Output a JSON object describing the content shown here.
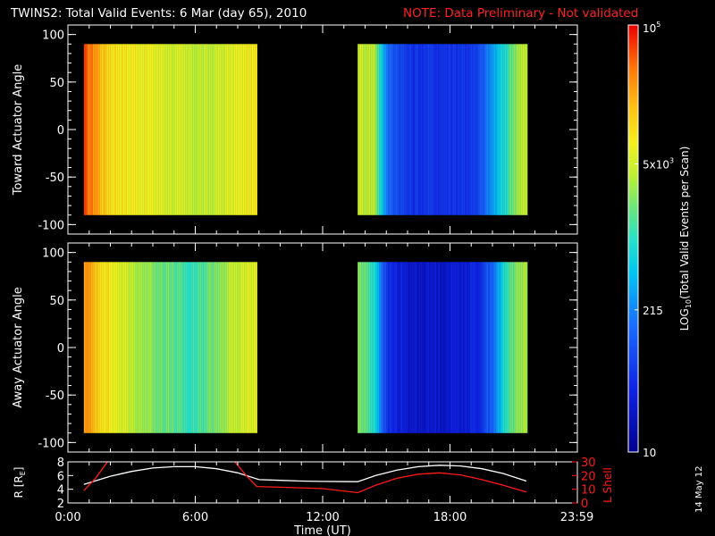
{
  "title": {
    "text": "TWINS2: Total Valid Events:  6 Mar (day  65), 2010",
    "note": "NOTE: Data Preliminary - Not validated",
    "note_color": "#ff2020"
  },
  "footer": {
    "date_stamp": "14 May 12"
  },
  "chart_data": [
    {
      "type": "heatmap",
      "ylabel": "Toward Actuator Angle",
      "ylim": [
        -110,
        110
      ],
      "yticks": [
        -100,
        -50,
        0,
        50,
        100
      ],
      "xlim_hours": [
        0,
        24
      ],
      "data_blocks_hours": [
        [
          0.75,
          8.9
        ],
        [
          13.65,
          21.6
        ]
      ],
      "columns_log10": [
        [
          0.75,
          4.7
        ],
        [
          1.0,
          4.6
        ],
        [
          1.3,
          4.45
        ],
        [
          1.6,
          4.2
        ],
        [
          2.0,
          4.05
        ],
        [
          2.6,
          3.95
        ],
        [
          3.4,
          3.9
        ],
        [
          4.4,
          3.78
        ],
        [
          5.5,
          3.65
        ],
        [
          6.5,
          3.6
        ],
        [
          7.5,
          3.75
        ],
        [
          8.5,
          3.9
        ],
        [
          8.9,
          3.9
        ],
        [
          13.65,
          3.7
        ],
        [
          14.4,
          3.62
        ],
        [
          15.0,
          2.2
        ],
        [
          16.0,
          1.75
        ],
        [
          17.5,
          1.75
        ],
        [
          19.2,
          1.8
        ],
        [
          20.0,
          2.5
        ],
        [
          20.6,
          3.0
        ],
        [
          21.2,
          3.6
        ],
        [
          21.6,
          3.6
        ]
      ]
    },
    {
      "type": "heatmap",
      "ylabel": "Away Actuator Angle",
      "ylim": [
        -110,
        110
      ],
      "yticks": [
        -100,
        -50,
        0,
        50,
        100
      ],
      "xlim_hours": [
        0,
        24
      ],
      "data_blocks_hours": [
        [
          0.75,
          8.9
        ],
        [
          13.65,
          21.6
        ]
      ],
      "columns_log10": [
        [
          0.75,
          4.45
        ],
        [
          1.0,
          4.35
        ],
        [
          1.5,
          4.1
        ],
        [
          2.0,
          3.9
        ],
        [
          3.0,
          3.6
        ],
        [
          4.0,
          3.4
        ],
        [
          5.0,
          3.2
        ],
        [
          5.8,
          3.0
        ],
        [
          6.5,
          3.25
        ],
        [
          7.5,
          3.55
        ],
        [
          8.5,
          3.75
        ],
        [
          8.9,
          3.8
        ],
        [
          13.65,
          3.4
        ],
        [
          14.4,
          3.0
        ],
        [
          15.0,
          1.7
        ],
        [
          16.0,
          1.45
        ],
        [
          17.5,
          1.45
        ],
        [
          19.2,
          1.6
        ],
        [
          20.0,
          2.2
        ],
        [
          20.6,
          3.0
        ],
        [
          21.2,
          3.5
        ],
        [
          21.6,
          3.5
        ]
      ]
    },
    {
      "type": "line",
      "xlabel": "Time (UT)",
      "xticks": [
        "0:00",
        "6:00",
        "12:00",
        "18:00",
        "23:59"
      ],
      "xtick_hours": [
        0,
        6,
        12,
        18,
        23.98
      ],
      "ylabel_left": "R [R",
      "ylabel_left_sub": "E",
      "ylabel_left_end": "]",
      "ylim_left": [
        2,
        8
      ],
      "yticks_left": [
        2,
        4,
        6,
        8
      ],
      "ylabel_right": "L Shell",
      "ylim_right": [
        0,
        30
      ],
      "yticks_right": [
        0,
        10,
        20,
        30
      ],
      "series": [
        {
          "color": "#ffffff",
          "axis": "left",
          "x": [
            0.75,
            2,
            3,
            4,
            5,
            6,
            7,
            8,
            9,
            10,
            11,
            12,
            13.65,
            14.5,
            15.5,
            16.5,
            17.5,
            18.5,
            19.5,
            20.5,
            21.6
          ],
          "y": [
            4.7,
            5.9,
            6.6,
            7.1,
            7.3,
            7.3,
            7.0,
            6.4,
            5.4,
            5.3,
            5.2,
            5.15,
            5.1,
            6.0,
            6.8,
            7.3,
            7.5,
            7.4,
            7.0,
            6.3,
            5.2
          ]
        },
        {
          "color": "#ff1a1a",
          "axis": "right",
          "x": [
            0.75,
            1.3,
            2.0,
            7.7,
            8.4,
            8.9,
            10,
            11,
            12,
            13.65,
            14.5,
            15.5,
            16.5,
            17.5,
            18.5,
            19.5,
            20.5,
            21.6
          ],
          "y": [
            9,
            18,
            33,
            33,
            20,
            12,
            11.5,
            11,
            10.5,
            7.5,
            13,
            18,
            21,
            22,
            20.5,
            17,
            13,
            8
          ]
        }
      ]
    }
  ],
  "colorbar": {
    "label": "LOG",
    "label_sub": "10",
    "label_rest": "(Total Valid  Events per Scan)",
    "log_range": [
      1,
      5
    ],
    "ticks": [
      {
        "text": "10",
        "log": 1.0
      },
      {
        "text": "215",
        "log": 2.3324
      },
      {
        "text": "5x10",
        "sup": "3",
        "log": 3.699
      },
      {
        "text": "10",
        "sup": "5",
        "log": 5.0
      }
    ]
  }
}
